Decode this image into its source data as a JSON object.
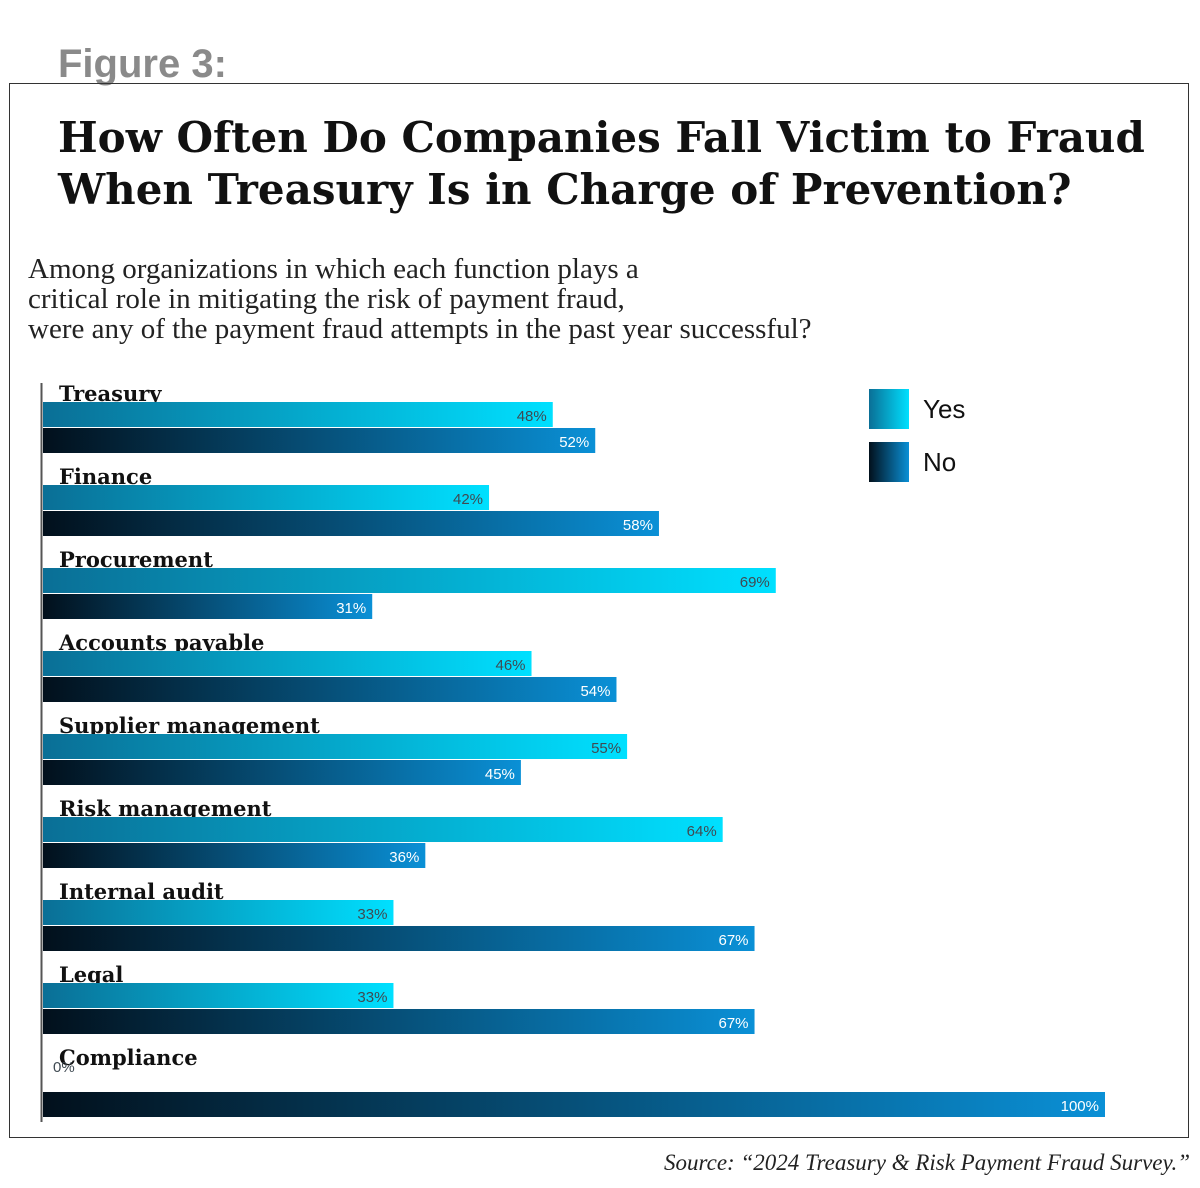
{
  "figure_label": "Figure 3:",
  "title_lines": [
    "How Often Do Companies Fall Victim to Fraud",
    "When Treasury Is in Charge of Prevention?"
  ],
  "subtitle_lines": [
    "Among organizations in which each function plays a",
    "critical role in mitigating the risk of payment fraud,",
    "were any of the payment fraud attempts in the past year successful?"
  ],
  "source": "Source: “2024 Treasury & Risk Payment Fraud Survey.”",
  "colors": {
    "yes_start": "#0a6f96",
    "yes_end": "#00e0ff",
    "no_start": "#02101c",
    "no_end": "#0a90d6"
  },
  "chart_data": {
    "type": "bar",
    "orientation": "horizontal",
    "categories": [
      "Treasury",
      "Finance",
      "Procurement",
      "Accounts payable",
      "Supplier management",
      "Risk management",
      "Internal audit",
      "Legal",
      "Compliance"
    ],
    "series": [
      {
        "name": "Yes",
        "values": [
          48,
          42,
          69,
          46,
          55,
          64,
          33,
          33,
          0
        ]
      },
      {
        "name": "No",
        "values": [
          52,
          58,
          31,
          54,
          45,
          36,
          67,
          67,
          100
        ]
      }
    ],
    "value_labels": {
      "Yes": [
        "48%",
        "42%",
        "69%",
        "46%",
        "55%",
        "64%",
        "33%",
        "33%",
        "0%"
      ],
      "No": [
        "52%",
        "58%",
        "31%",
        "54%",
        "45%",
        "36%",
        "67%",
        "67%",
        "100%"
      ]
    },
    "unit": "%",
    "xlim": [
      0,
      100
    ],
    "grid": false,
    "legend": "top-right"
  }
}
